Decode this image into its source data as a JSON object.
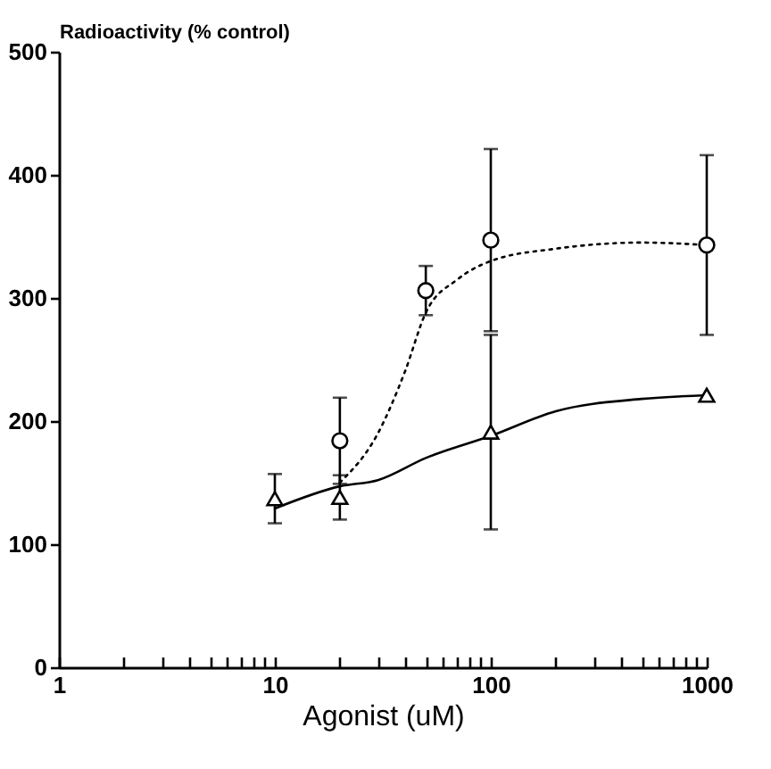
{
  "chart_data": {
    "type": "scatter",
    "ylabel": "Radioactivity (% control)",
    "xlabel": "Agonist (uM)",
    "log": "x",
    "grid": false,
    "xlim": [
      1,
      1000
    ],
    "ylim": [
      0,
      500
    ],
    "yticks": [
      0,
      100,
      200,
      300,
      400,
      500
    ],
    "xticks": [
      1,
      {
        "value": 2,
        "label": null
      },
      {
        "value": 3,
        "label": null
      },
      {
        "value": 4,
        "label": null
      },
      {
        "value": 5,
        "label": null
      },
      {
        "value": 6,
        "label": null
      },
      {
        "value": 7,
        "label": null
      },
      {
        "value": 8,
        "label": null
      },
      {
        "value": 9,
        "label": null
      },
      10,
      {
        "value": 20,
        "label": null
      },
      {
        "value": 30,
        "label": null
      },
      {
        "value": 40,
        "label": null
      },
      {
        "value": 50,
        "label": null
      },
      {
        "value": 60,
        "label": null
      },
      {
        "value": 70,
        "label": null
      },
      {
        "value": 80,
        "label": null
      },
      {
        "value": 90,
        "label": null
      },
      100,
      {
        "value": 200,
        "label": null
      },
      {
        "value": 300,
        "label": null
      },
      {
        "value": 400,
        "label": null
      },
      {
        "value": 500,
        "label": null
      },
      {
        "value": 600,
        "label": null
      },
      {
        "value": 700,
        "label": null
      },
      {
        "value": 800,
        "label": null
      },
      {
        "value": 900,
        "label": null
      },
      1000
    ],
    "series": [
      {
        "marker": "circle",
        "color": "#000000",
        "x": [
          20,
          50,
          100,
          1000
        ],
        "values": [
          184,
          306,
          347,
          343
        ],
        "errors": [
          35,
          20,
          74,
          73
        ]
      },
      {
        "marker": "triangle",
        "color": "#000000",
        "x": [
          10,
          20,
          100,
          1000
        ],
        "values": [
          137,
          138,
          191,
          221
        ],
        "errors": [
          20,
          18,
          79,
          null
        ]
      },
      {
        "type": "line",
        "line_style": "dotted",
        "marker": "none",
        "color": "#000000",
        "x": [
          20,
          30,
          40,
          50,
          70,
          100,
          200,
          500,
          1000
        ],
        "values": [
          150,
          190,
          240,
          288,
          315,
          330,
          340,
          345,
          343
        ]
      },
      {
        "type": "line",
        "line_style": "solid",
        "marker": "none",
        "color": "#000000",
        "x": [
          10,
          20,
          30,
          50,
          100,
          200,
          500,
          1000
        ],
        "values": [
          129,
          147,
          152,
          170,
          188,
          208,
          218,
          221
        ]
      }
    ]
  }
}
